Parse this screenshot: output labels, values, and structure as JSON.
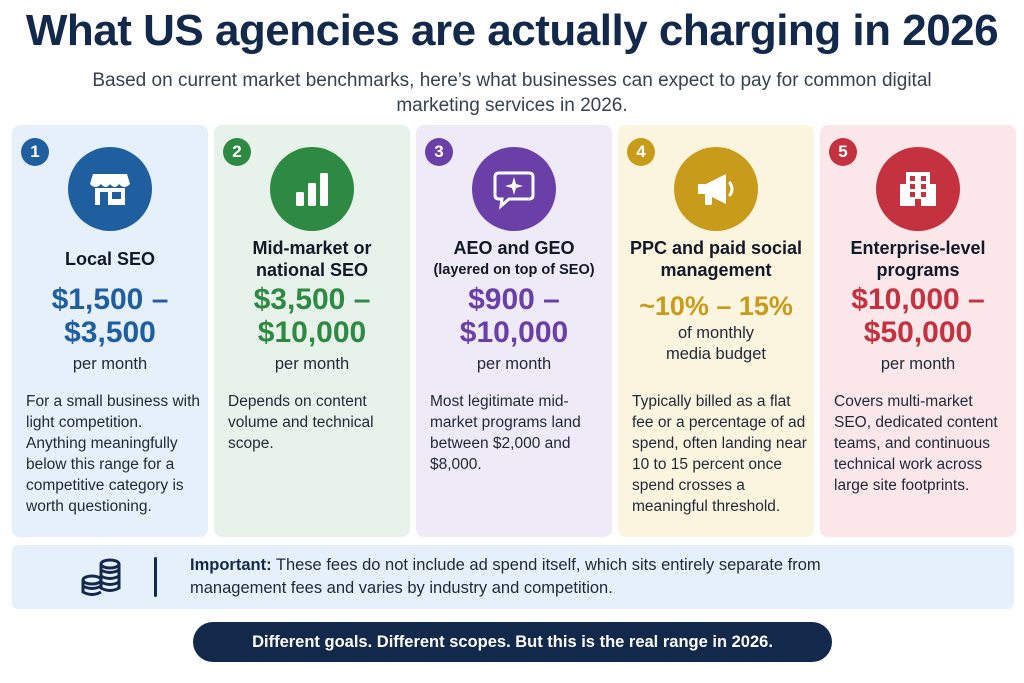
{
  "title": "What US agencies are actually charging in 2026",
  "subtitle": "Based on current market benchmarks, here’s what businesses can expect to pay for common digital marketing services in 2026.",
  "colors": {
    "navy": "#13294b",
    "blue": "#1f5fa0",
    "green": "#2e8a43",
    "purple": "#6b3fa8",
    "gold": "#c89b1a",
    "red": "#c4313f"
  },
  "cards": [
    {
      "number": "1",
      "icon": "storefront-icon",
      "title": "Local SEO",
      "title_sub": "",
      "price_line1": "$1,500 –",
      "price_line2": "$3,500",
      "unit_line1": "per month",
      "unit_line2": "",
      "description": "For a small business with light competition. Anything meaningfully below this range for a competitive category is worth questioning."
    },
    {
      "number": "2",
      "icon": "bar-chart-icon",
      "title": "Mid-market or national SEO",
      "title_sub": "",
      "price_line1": "$3,500 –",
      "price_line2": "$10,000",
      "unit_line1": "per month",
      "unit_line2": "",
      "description": "Depends on content volume and technical scope."
    },
    {
      "number": "3",
      "icon": "chat-sparkle-icon",
      "title": "AEO and GEO",
      "title_sub": "(layered on top of SEO)",
      "price_line1": "$900 –",
      "price_line2": "$10,000",
      "unit_line1": "per month",
      "unit_line2": "",
      "description": "Most legitimate mid-market programs land between $2,000 and $8,000."
    },
    {
      "number": "4",
      "icon": "megaphone-icon",
      "title": "PPC and paid social management",
      "title_sub": "",
      "price_line1": "~10% – 15%",
      "price_line2": "",
      "unit_line1": "of monthly",
      "unit_line2": "media budget",
      "description": "Typically billed as a flat fee or a percentage of ad spend, often landing near 10 to 15 percent once spend crosses a meaningful threshold."
    },
    {
      "number": "5",
      "icon": "building-icon",
      "title": "Enterprise-level programs",
      "title_sub": "",
      "price_line1": "$10,000 –",
      "price_line2": "$50,000",
      "unit_line1": "per month",
      "unit_line2": "",
      "description": "Covers multi-market SEO, dedicated content teams, and continuous technical work across large site footprints."
    }
  ],
  "note": {
    "icon": "coins-icon",
    "label": "Important:",
    "text": "These fees do not include ad spend itself, which sits entirely separate from management fees and varies by industry and competition."
  },
  "banner": "Different goals. Different scopes. But this is the real range in 2026."
}
